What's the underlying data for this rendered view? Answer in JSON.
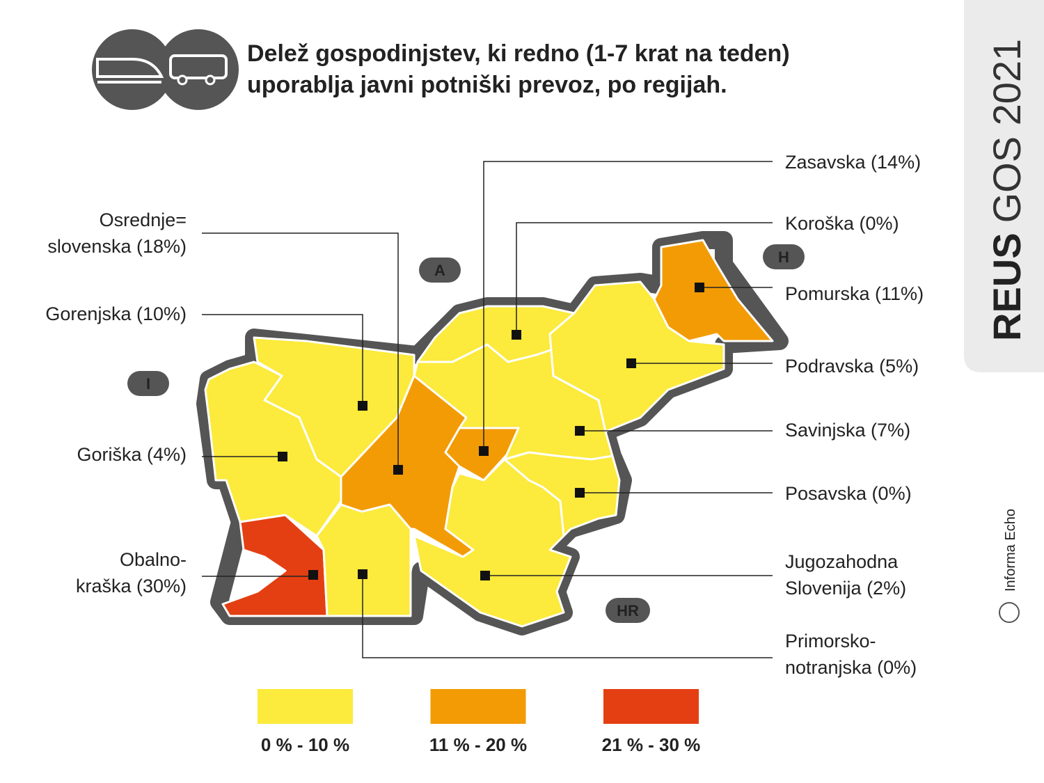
{
  "header": {
    "title": [
      "Delež gospodinjstev, ki redno (1-7 krat na teden)",
      "uporablja javni potniški prevoz, po regijah."
    ]
  },
  "brand": {
    "name": "REUS",
    "edition": "GOS 2021",
    "publisher": "Informa Echo"
  },
  "neighbors": [
    "A",
    "H",
    "I",
    "HR"
  ],
  "regions": [
    {
      "label": [
        "Zasavska (14%)"
      ]
    },
    {
      "label": [
        "Koroška (0%)"
      ]
    },
    {
      "label": [
        "Pomurska (11%)"
      ]
    },
    {
      "label": [
        "Podravska (5%)"
      ]
    },
    {
      "label": [
        "Savinjska (7%)"
      ]
    },
    {
      "label": [
        "Posavska (0%)"
      ]
    },
    {
      "label": [
        "Jugozahodna",
        "Slovenija (2%)"
      ]
    },
    {
      "label": [
        "Primorsko-",
        "notranjska (0%)"
      ]
    },
    {
      "label": [
        "Osrednje=",
        "slovenska (18%)"
      ]
    },
    {
      "label": [
        "Gorenjska (10%)"
      ]
    },
    {
      "label": [
        "Goriška (4%)"
      ]
    },
    {
      "label": [
        "Obalno-",
        "kraška (30%)"
      ]
    }
  ],
  "legend": [
    "0 % - 10 %",
    "11 % - 20 %",
    "21 % - 30 %"
  ]
}
